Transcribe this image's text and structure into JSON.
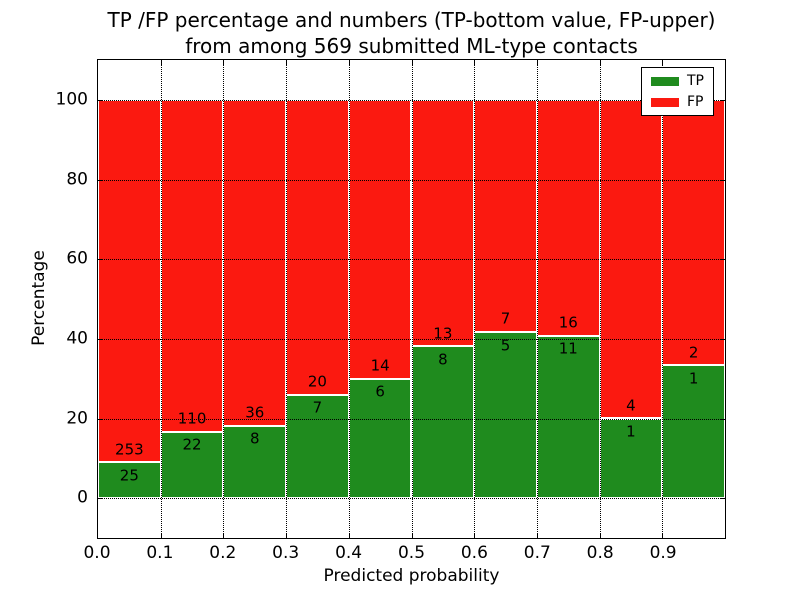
{
  "chart": {
    "title_line1": "TP /FP percentage and numbers (TP-bottom value, FP-upper)",
    "title_line2": "from among 569 submitted ML-type contacts",
    "xlabel": "Predicted probability",
    "ylabel": "Percentage"
  },
  "chart_data": {
    "type": "bar",
    "stacked": true,
    "title_lines": [
      "TP /FP percentage and numbers (TP-bottom value, FP-upper)",
      "from among 569 submitted ML-type contacts"
    ],
    "xlabel": "Predicted probability",
    "ylabel": "Percentage",
    "bins": [
      {
        "range": "0.0-0.1",
        "tp": 25,
        "fp": 253,
        "tp_pct": 8.99,
        "fp_pct": 91.01
      },
      {
        "range": "0.1-0.2",
        "tp": 22,
        "fp": 110,
        "tp_pct": 16.67,
        "fp_pct": 83.33
      },
      {
        "range": "0.2-0.3",
        "tp": 8,
        "fp": 36,
        "tp_pct": 18.18,
        "fp_pct": 81.82
      },
      {
        "range": "0.3-0.4",
        "tp": 7,
        "fp": 20,
        "tp_pct": 25.93,
        "fp_pct": 74.07
      },
      {
        "range": "0.4-0.5",
        "tp": 6,
        "fp": 14,
        "tp_pct": 30.0,
        "fp_pct": 70.0
      },
      {
        "range": "0.5-0.6",
        "tp": 8,
        "fp": 13,
        "tp_pct": 38.1,
        "fp_pct": 61.9
      },
      {
        "range": "0.6-0.7",
        "tp": 5,
        "fp": 7,
        "tp_pct": 41.67,
        "fp_pct": 58.33
      },
      {
        "range": "0.7-0.8",
        "tp": 11,
        "fp": 16,
        "tp_pct": 40.74,
        "fp_pct": 59.26
      },
      {
        "range": "0.8-0.9",
        "tp": 1,
        "fp": 4,
        "tp_pct": 20.0,
        "fp_pct": 80.0
      },
      {
        "range": "0.9-1.0",
        "tp": 1,
        "fp": 2,
        "tp_pct": 33.33,
        "fp_pct": 66.67
      }
    ],
    "series": [
      {
        "name": "TP",
        "color": "#1f8b1e"
      },
      {
        "name": "FP",
        "color": "#fb1910"
      }
    ],
    "x_ticks": [
      "0.0",
      "0.1",
      "0.2",
      "0.3",
      "0.4",
      "0.5",
      "0.6",
      "0.7",
      "0.8",
      "0.9"
    ],
    "y_ticks": [
      "0",
      "20",
      "40",
      "60",
      "80",
      "100"
    ],
    "xlim": [
      0.0,
      1.0
    ],
    "ylim": [
      -10,
      110
    ],
    "grid": "dotted",
    "bar_edge_color": "#ffffff",
    "legend_position": "upper right"
  }
}
